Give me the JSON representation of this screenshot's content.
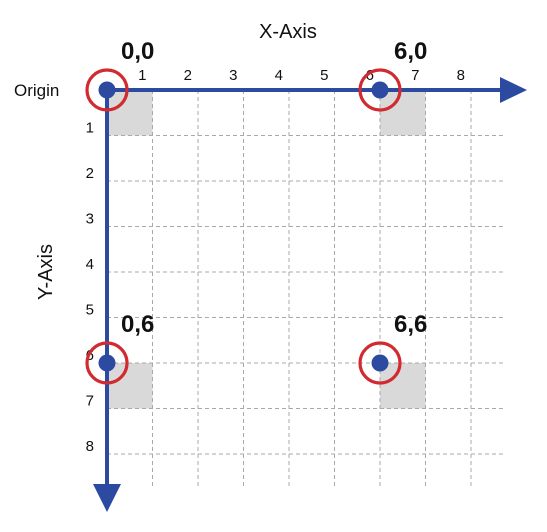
{
  "labels": {
    "x_axis_title": "X-Axis",
    "y_axis_title": "Y-Axis",
    "origin": "Origin"
  },
  "x_ticks": [
    "1",
    "2",
    "3",
    "4",
    "5",
    "6",
    "7",
    "8"
  ],
  "y_ticks": [
    "1",
    "2",
    "3",
    "4",
    "5",
    "6",
    "7",
    "8"
  ],
  "points": [
    {
      "x": 0,
      "y": 0,
      "label": "0,0"
    },
    {
      "x": 6,
      "y": 0,
      "label": "6,0"
    },
    {
      "x": 0,
      "y": 6,
      "label": "0,6"
    },
    {
      "x": 6,
      "y": 6,
      "label": "6,6"
    }
  ],
  "colors": {
    "axis": "#2b4aa0",
    "point": "#2b4aa0",
    "ring": "#d12a2f",
    "grid": "#a9a9a9",
    "cell": "#d9d9d9"
  }
}
